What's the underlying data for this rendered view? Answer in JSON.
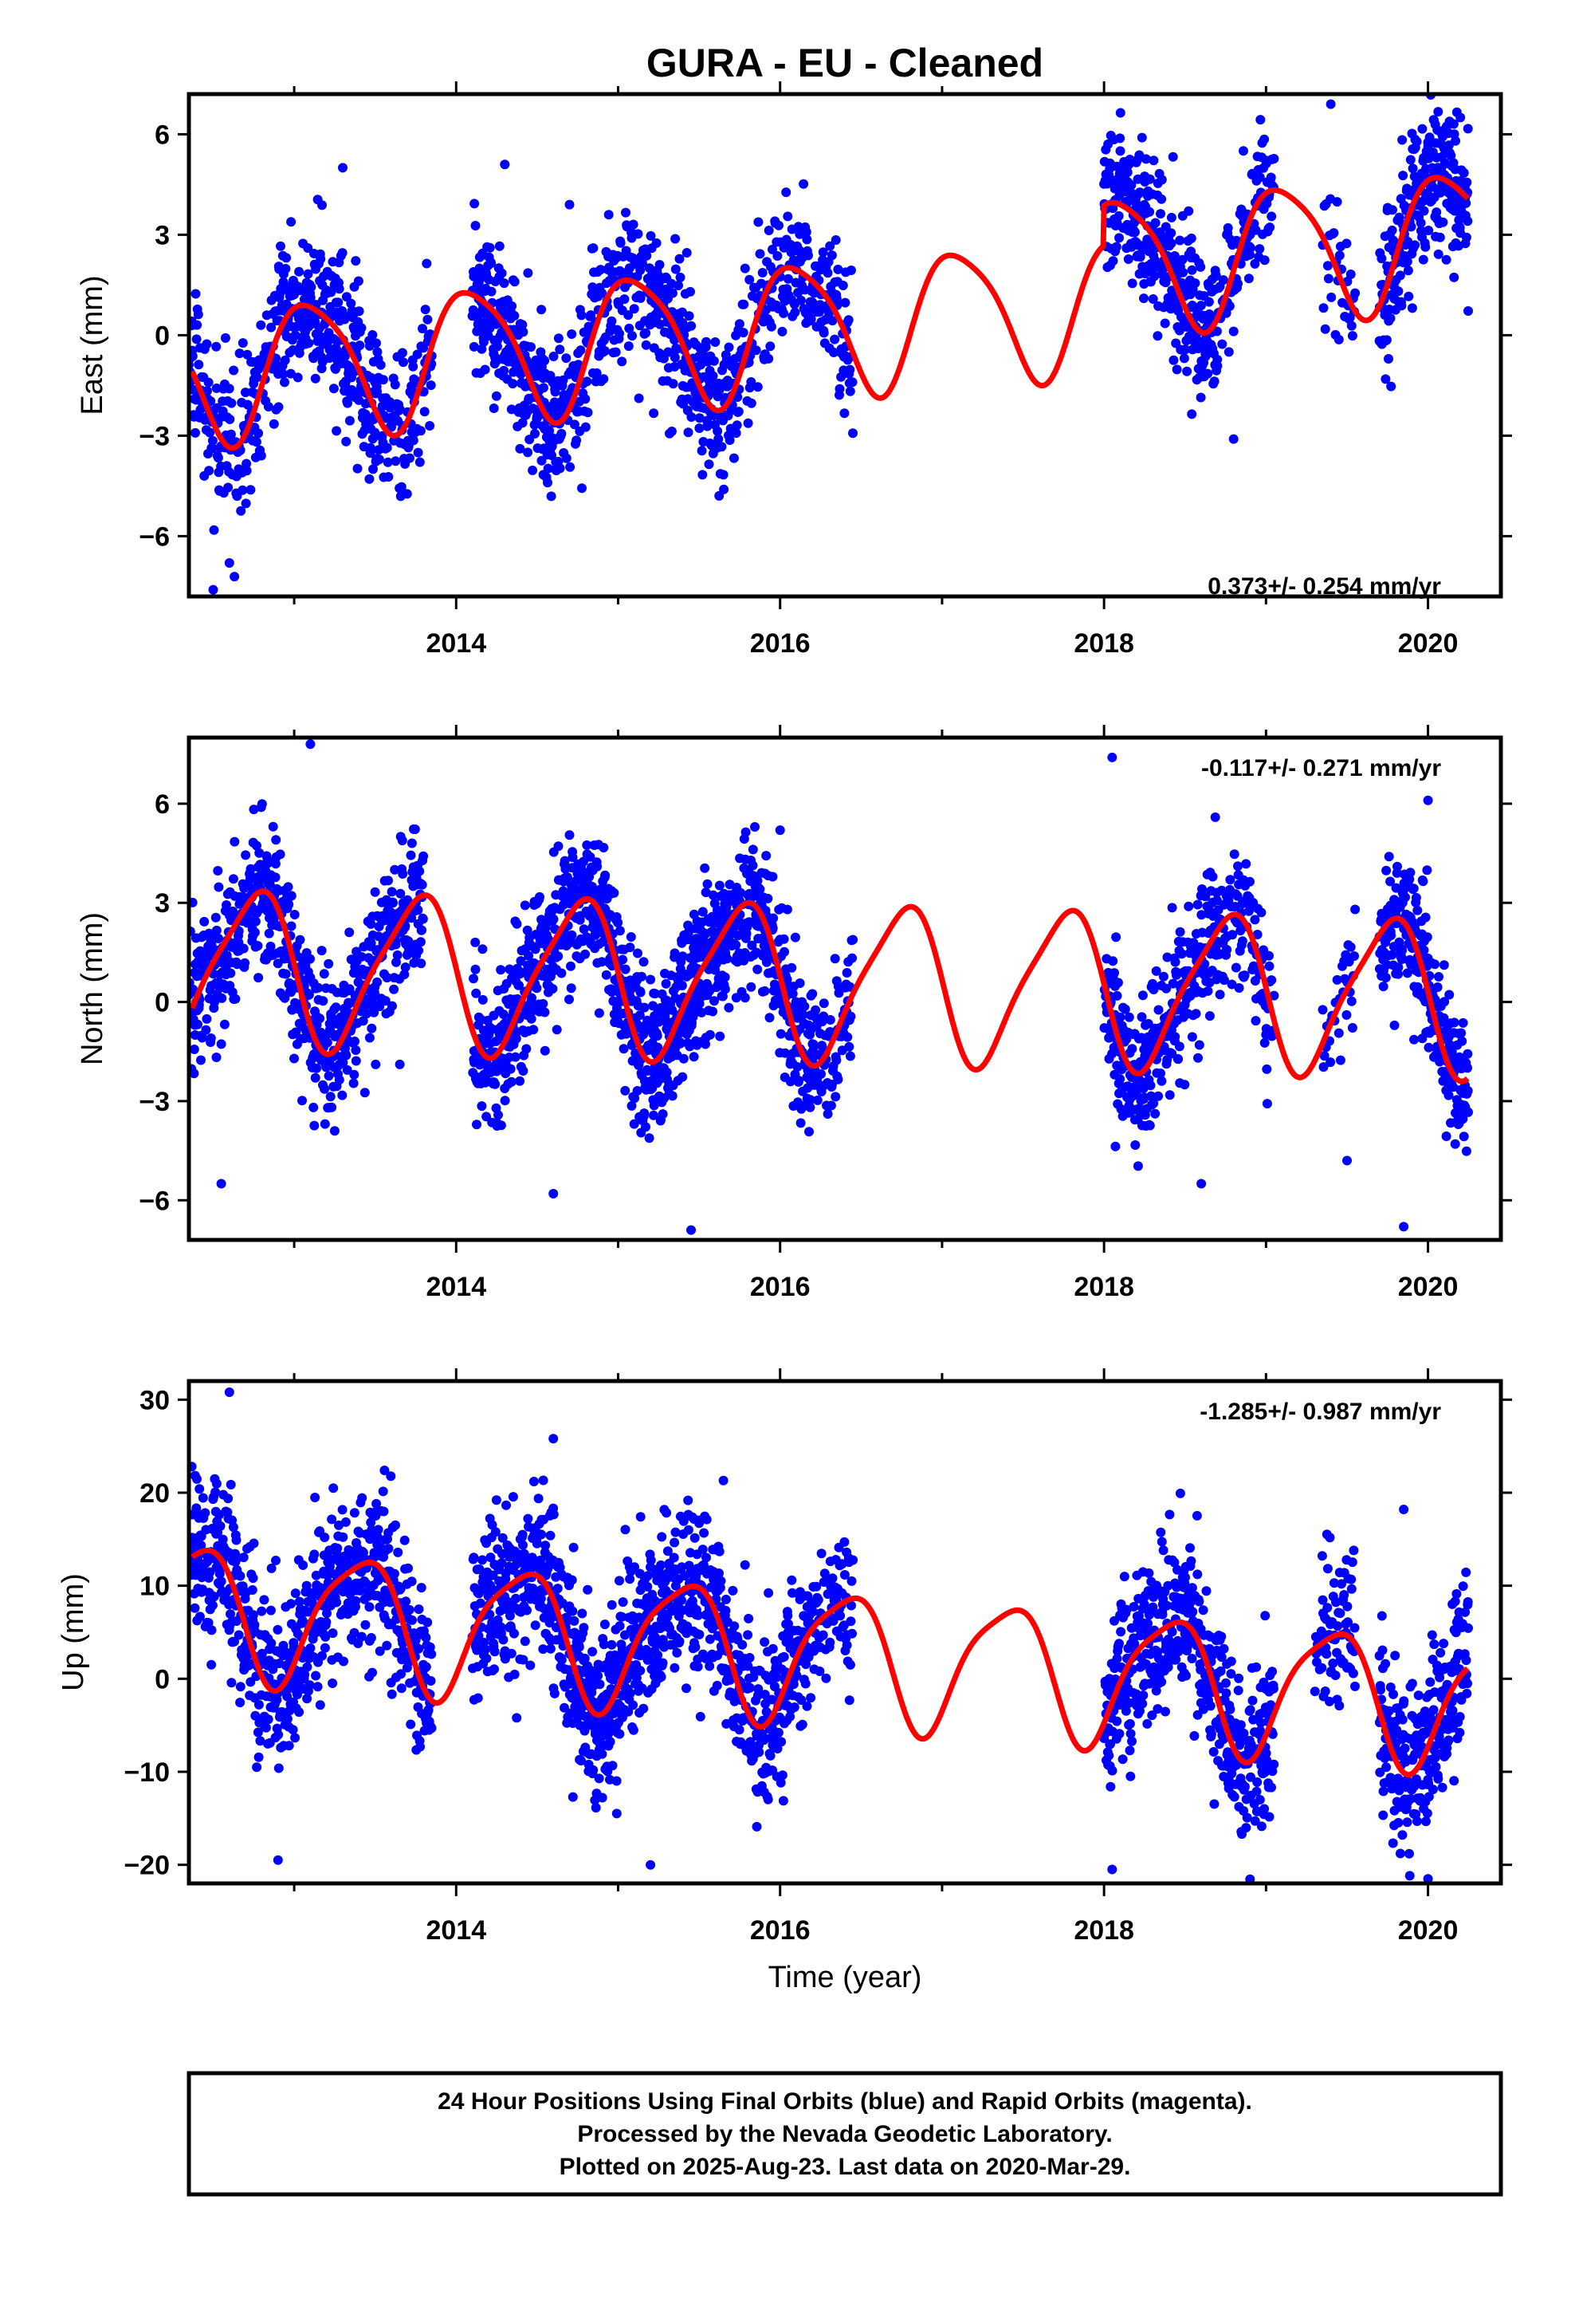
{
  "title": "GURA  - EU - Cleaned",
  "colors": {
    "data": "#0000ff",
    "model": "#ff0000",
    "axis": "#000000"
  },
  "chart_data": [
    {
      "type": "scatter",
      "component": "east",
      "ylabel": "East (mm)",
      "xlabel": "",
      "rate_label": "0.373+/- 0.254 mm/yr",
      "xlim": [
        2012.35,
        2020.45
      ],
      "ylim": [
        -7.8,
        7.2
      ],
      "yticks": [
        -6,
        -3,
        0,
        3,
        6
      ],
      "xticks": [
        2014,
        2016,
        2018,
        2020
      ],
      "segments": [
        [
          2012.35,
          2012.9,
          2
        ],
        [
          2012.9,
          2013.55,
          3
        ],
        [
          2013.55,
          2013.85,
          2
        ],
        [
          2014.1,
          2014.65,
          3
        ],
        [
          2014.65,
          2015.2,
          2
        ],
        [
          2015.2,
          2015.6,
          3
        ],
        [
          2015.6,
          2016.0,
          2
        ],
        [
          2016.0,
          2016.45,
          2
        ],
        [
          2018.0,
          2018.7,
          3
        ],
        [
          2018.7,
          2019.05,
          2
        ],
        [
          2019.35,
          2019.55,
          1
        ],
        [
          2019.7,
          2020.25,
          3
        ]
      ],
      "noise": 1.1,
      "outliers": [
        [
          2012.5,
          -7.6
        ],
        [
          2012.6,
          -6.8
        ],
        [
          2013.3,
          5.0
        ],
        [
          2014.3,
          5.1
        ],
        [
          2014.7,
          3.9
        ],
        [
          2018.1,
          5.5
        ],
        [
          2018.8,
          -3.1
        ],
        [
          2019.4,
          6.9
        ],
        [
          2020.2,
          6.5
        ]
      ],
      "model": {
        "offset": 0.35,
        "trend": 0.373,
        "ref": 2016.4,
        "annual_amp": 2.0,
        "annual_phase": 2013.1,
        "semi_amp": 0.35,
        "semi_phase": 2012.9,
        "extra_from": 2018.0,
        "extra_offset": 1.2
      }
    },
    {
      "type": "scatter",
      "component": "north",
      "ylabel": "North (mm)",
      "xlabel": "",
      "rate_label": "-0.117+/- 0.271 mm/yr",
      "xlim": [
        2012.35,
        2020.45
      ],
      "ylim": [
        -7.2,
        8.0
      ],
      "yticks": [
        -6,
        -3,
        0,
        3,
        6
      ],
      "xticks": [
        2014,
        2016,
        2018,
        2020
      ],
      "segments": [
        [
          2012.35,
          2012.7,
          3
        ],
        [
          2012.7,
          2013.2,
          3
        ],
        [
          2013.2,
          2013.8,
          3
        ],
        [
          2014.1,
          2014.7,
          3
        ],
        [
          2014.7,
          2015.2,
          3
        ],
        [
          2015.2,
          2015.7,
          4
        ],
        [
          2015.7,
          2016.2,
          3
        ],
        [
          2016.2,
          2016.45,
          2
        ],
        [
          2018.0,
          2018.7,
          3
        ],
        [
          2018.7,
          2019.05,
          2
        ],
        [
          2019.35,
          2019.55,
          1
        ],
        [
          2019.7,
          2020.25,
          3
        ]
      ],
      "noise": 1.1,
      "outliers": [
        [
          2012.55,
          -5.5
        ],
        [
          2013.1,
          7.8
        ],
        [
          2013.25,
          -3.9
        ],
        [
          2014.6,
          -5.8
        ],
        [
          2015.45,
          -6.9
        ],
        [
          2016.0,
          5.2
        ],
        [
          2018.05,
          7.4
        ],
        [
          2018.6,
          -5.5
        ],
        [
          2019.5,
          -4.8
        ],
        [
          2019.85,
          -6.8
        ],
        [
          2020.0,
          6.1
        ]
      ],
      "model": {
        "offset": 0.6,
        "trend": -0.117,
        "ref": 2016.4,
        "annual_amp": 2.3,
        "annual_phase": 2012.75,
        "semi_amp": 0.45,
        "semi_phase": 2012.9,
        "extra_from": 3000,
        "extra_offset": 0
      }
    },
    {
      "type": "scatter",
      "component": "up",
      "ylabel": "Up (mm)",
      "xlabel": "Time (year)",
      "rate_label": "-1.285+/- 0.987 mm/yr",
      "xlim": [
        2012.35,
        2020.45
      ],
      "ylim": [
        -22,
        32
      ],
      "yticks": [
        -20,
        -10,
        0,
        10,
        20,
        30
      ],
      "xticks": [
        2014,
        2016,
        2018,
        2020
      ],
      "segments": [
        [
          2012.35,
          2012.9,
          3
        ],
        [
          2012.9,
          2013.5,
          3
        ],
        [
          2013.5,
          2013.85,
          3
        ],
        [
          2014.1,
          2014.7,
          3
        ],
        [
          2014.7,
          2015.3,
          4
        ],
        [
          2015.3,
          2015.8,
          3
        ],
        [
          2015.8,
          2016.2,
          3
        ],
        [
          2016.2,
          2016.45,
          2
        ],
        [
          2018.0,
          2018.6,
          3
        ],
        [
          2018.6,
          2019.05,
          3
        ],
        [
          2019.3,
          2019.55,
          2
        ],
        [
          2019.7,
          2020.25,
          3
        ]
      ],
      "noise": 4.5,
      "outliers": [
        [
          2012.6,
          30.8
        ],
        [
          2012.9,
          -19.5
        ],
        [
          2014.6,
          25.8
        ],
        [
          2015.2,
          -20.0
        ],
        [
          2015.65,
          21.3
        ],
        [
          2018.05,
          -20.5
        ],
        [
          2019.85,
          18.2
        ],
        [
          2020.0,
          -21.5
        ]
      ],
      "model": {
        "offset": 2.5,
        "trend": -1.285,
        "ref": 2016.4,
        "annual_amp": 7.0,
        "annual_phase": 2012.4,
        "semi_amp": 1.5,
        "semi_phase": 2012.6,
        "extra_from": 3000,
        "extra_offset": 0
      }
    }
  ],
  "footer": {
    "line1": "24 Hour Positions Using Final Orbits (blue) and Rapid Orbits (magenta).",
    "line2": "Processed by the Nevada Geodetic Laboratory.",
    "line3": "Plotted on 2025-Aug-23. Last data on 2020-Mar-29."
  }
}
